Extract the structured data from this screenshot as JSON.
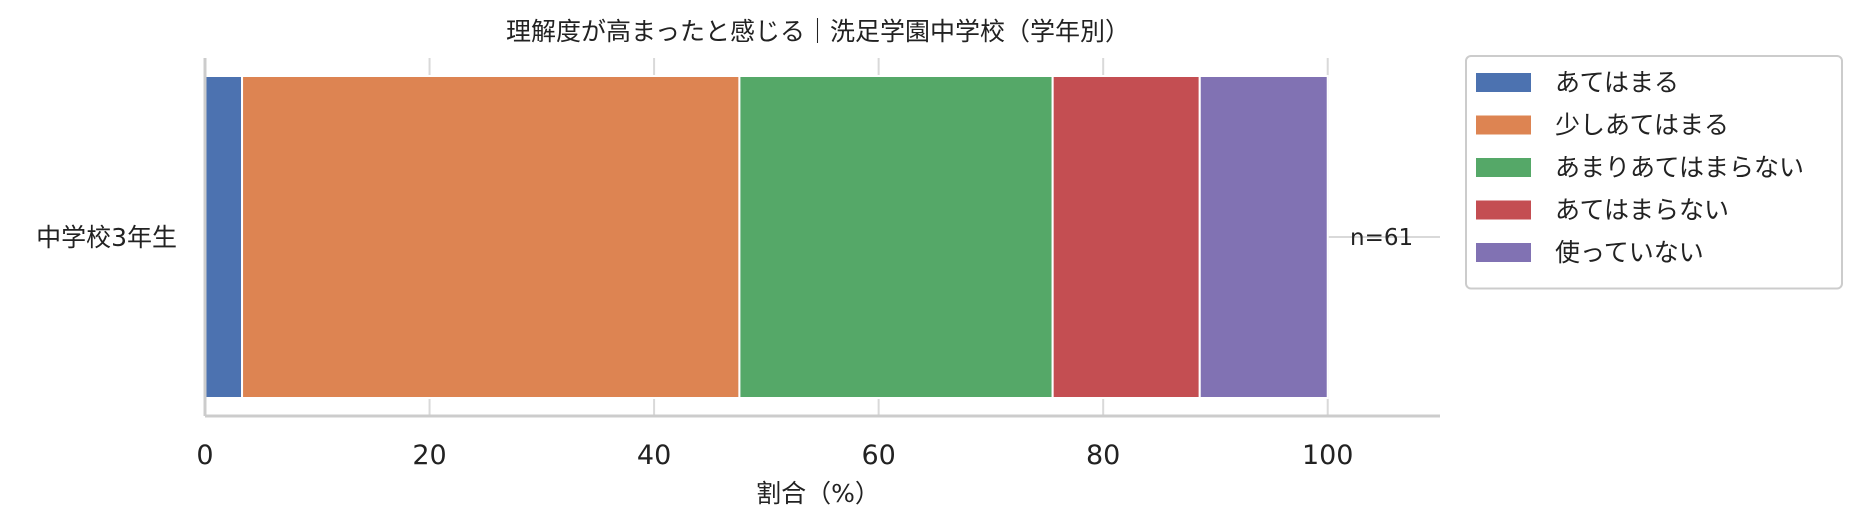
{
  "chart_data": {
    "type": "bar",
    "orientation": "horizontal",
    "stacked": true,
    "title": "理解度が高まったと感じる｜洗足学園中学校（学年別）",
    "xlabel": "割合（%）",
    "ylabel": "",
    "xlim": [
      0,
      110
    ],
    "xticks": [
      0,
      20,
      40,
      60,
      80,
      100
    ],
    "xtick_labels": [
      "0",
      "20",
      "40",
      "60",
      "80",
      "100"
    ],
    "grid": "vertical",
    "legend_position": "outside-right-top",
    "categories": [
      "中学校3年生"
    ],
    "annotations": [
      "n=61"
    ],
    "series": [
      {
        "name": "あてはまる",
        "color": "#4c72b0",
        "values": [
          3.3
        ]
      },
      {
        "name": "少しあてはまる",
        "color": "#dd8452",
        "values": [
          44.3
        ]
      },
      {
        "name": "あまりあてはまらない",
        "color": "#55a868",
        "values": [
          27.9
        ]
      },
      {
        "name": "あてはまらない",
        "color": "#c44e52",
        "values": [
          13.1
        ]
      },
      {
        "name": "使っていない",
        "color": "#8172b3",
        "values": [
          11.4
        ]
      }
    ]
  }
}
